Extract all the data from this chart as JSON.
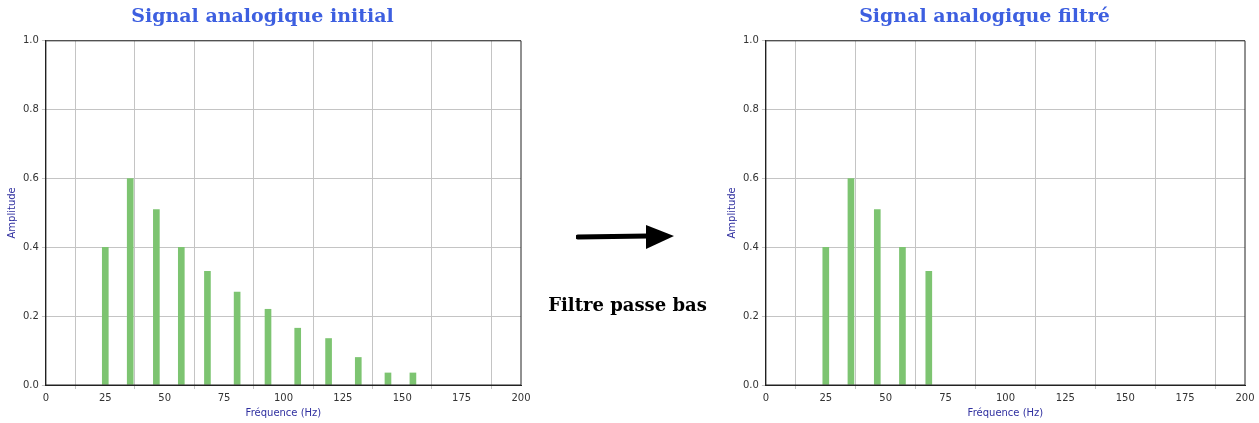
{
  "chart_data": [
    {
      "type": "bar",
      "title": "Signal analogique initial",
      "xlabel": "Fréquence (Hz)",
      "ylabel": "Amplitude",
      "color": "#7dc471",
      "x": [
        25,
        35.5,
        46.5,
        57,
        68,
        80.5,
        93.5,
        106,
        119,
        131.5,
        144,
        154.5
      ],
      "values": [
        0.4,
        0.6,
        0.51,
        0.4,
        0.33,
        0.27,
        0.22,
        0.165,
        0.135,
        0.08,
        0.035,
        0.035
      ],
      "xlim": [
        0,
        200
      ],
      "xticks": [
        0,
        25,
        50,
        75,
        100,
        125,
        150,
        175,
        200
      ],
      "ylim": [
        0,
        1
      ],
      "yticks": [
        {
          "value": 0,
          "label": "0.0"
        },
        {
          "value": 0.2,
          "label": "0.2"
        },
        {
          "value": 0.4,
          "label": "0.4"
        },
        {
          "value": 0.6,
          "label": "0.6"
        },
        {
          "value": 0.8,
          "label": "0.8"
        },
        {
          "value": 1,
          "label": "1.0"
        }
      ],
      "grid": true
    },
    {
      "type": "other",
      "annotations": [
        "Filtre passe bas"
      ]
    },
    {
      "type": "bar",
      "title": "Signal analogique filtré",
      "xlabel": "Fréquence (Hz)",
      "ylabel": "Amplitude",
      "color": "#7dc471",
      "x": [
        25,
        35.5,
        46.5,
        57,
        68
      ],
      "values": [
        0.4,
        0.6,
        0.51,
        0.4,
        0.33
      ],
      "xlim": [
        0,
        200
      ],
      "xticks": [
        0,
        25,
        50,
        75,
        100,
        125,
        150,
        175,
        200
      ],
      "ylim": [
        0,
        1
      ],
      "yticks": [
        {
          "value": 0,
          "label": "0.0"
        },
        {
          "value": 0.2,
          "label": "0.2"
        },
        {
          "value": 0.4,
          "label": "0.4"
        },
        {
          "value": 0.6,
          "label": "0.6"
        },
        {
          "value": 0.8,
          "label": "0.8"
        },
        {
          "value": 1,
          "label": "1.0"
        }
      ],
      "grid": true
    }
  ]
}
